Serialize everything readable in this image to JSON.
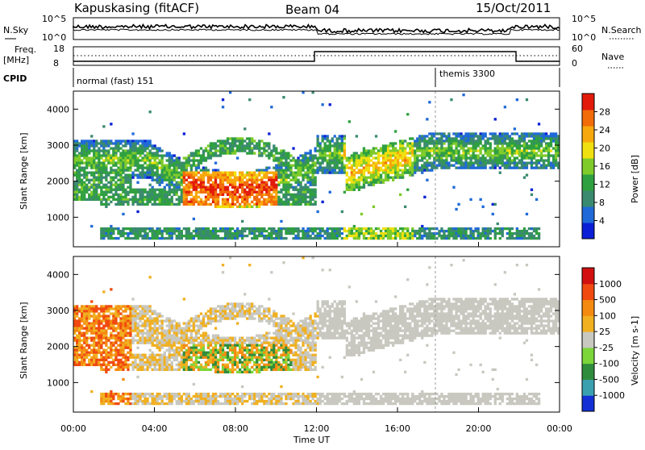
{
  "header": {
    "station": "Kapuskasing (fitACF)",
    "beam": "Beam 04",
    "date": "15/Oct/2011"
  },
  "top_panel": {
    "left_label": "N.Sky",
    "left_ticks": [
      "10^5",
      "10^0"
    ],
    "right_label": "N.Search",
    "right_ticks": [
      "10^5",
      "10^0"
    ]
  },
  "freq_panel": {
    "left_label_1": "Freq.",
    "left_label_2": "[MHz]",
    "left_ticks": [
      "18",
      "8"
    ],
    "right_label": "Nave",
    "right_ticks": [
      "60",
      "0"
    ]
  },
  "cpid_panel": {
    "label": "CPID",
    "modes": [
      "normal (fast) 151",
      "themis 3300"
    ]
  },
  "chart_data": [
    {
      "type": "heatmap",
      "name": "power",
      "ylabel": "Slant Range [km]",
      "ylim": [
        180,
        4500
      ],
      "yticks": [
        "1000",
        "2000",
        "3000",
        "4000"
      ],
      "xlim": [
        "00:00",
        "24:00"
      ],
      "colorbar": {
        "label": "Power [dB]",
        "ticks": [
          "4",
          "8",
          "12",
          "16",
          "20",
          "24",
          "28"
        ],
        "colors": [
          "#0a1fd6",
          "#1f6ad8",
          "#3a8a70",
          "#2fa040",
          "#7ecb2a",
          "#f0e010",
          "#f7a80c",
          "#f26c0a",
          "#e21a0a"
        ]
      }
    },
    {
      "type": "heatmap",
      "name": "velocity",
      "ylabel": "Slant Range [km]",
      "ylim": [
        180,
        4500
      ],
      "yticks": [
        "1000",
        "2000",
        "3000",
        "4000"
      ],
      "xlim": [
        "00:00",
        "24:00"
      ],
      "xticks": [
        "00:00",
        "04:00",
        "08:00",
        "12:00",
        "16:00",
        "20:00",
        "00:00"
      ],
      "xlabel": "Time UT",
      "colorbar": {
        "label": "Velocity [m s-1]",
        "ticks": [
          "1000",
          "500",
          "100",
          "25",
          "-25",
          "-100",
          "-500",
          "-1000"
        ],
        "colors": [
          "#1430d4",
          "#3aa0b0",
          "#2f8c3c",
          "#7cd63a",
          "#c8c8c0",
          "#f0b020",
          "#f58a10",
          "#f04a10",
          "#d21010"
        ]
      }
    }
  ]
}
